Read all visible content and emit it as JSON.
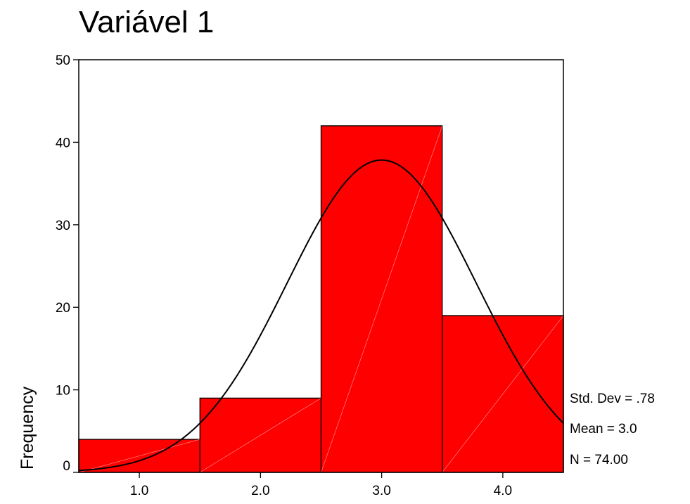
{
  "chart_data": {
    "type": "bar",
    "title": "Variável 1",
    "xlabel": "",
    "ylabel": "Frequency",
    "bins": [
      {
        "label": "1.0",
        "from": 0.5,
        "to": 1.5,
        "value": 4
      },
      {
        "label": "2.0",
        "from": 1.5,
        "to": 2.5,
        "value": 9
      },
      {
        "label": "3.0",
        "from": 2.5,
        "to": 3.5,
        "value": 42
      },
      {
        "label": "4.0",
        "from": 3.5,
        "to": 4.5,
        "value": 19
      }
    ],
    "xlim": [
      0.5,
      4.5
    ],
    "ylim": [
      0,
      50
    ],
    "yticks": [
      "0",
      "10",
      "20",
      "30",
      "40",
      "50"
    ],
    "bar_color": "#ff0000",
    "normal_curve": {
      "mean": 3.0,
      "std": 0.78,
      "n": 74
    },
    "stats": [
      "Std. Dev = .78",
      "Mean = 3.0",
      "N = 74.00"
    ],
    "grid": false,
    "legend": "none"
  }
}
